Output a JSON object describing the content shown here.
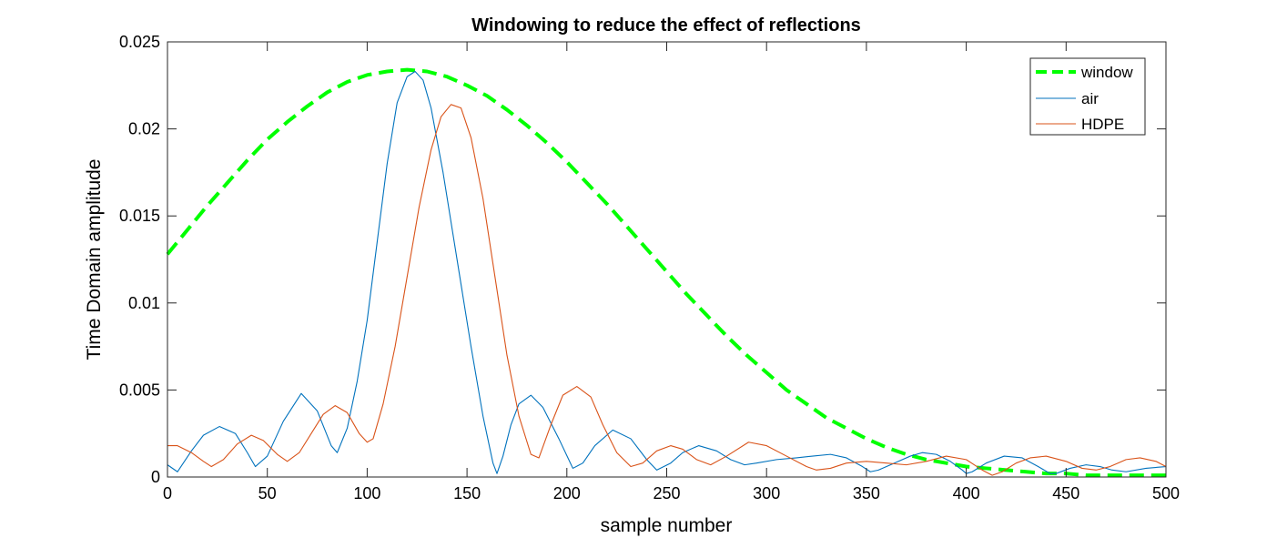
{
  "chart_data": {
    "type": "line",
    "title": "Windowing to reduce the effect of reflections",
    "xlabel": "sample number",
    "ylabel": "Time Domain amplitude",
    "xlim": [
      0,
      500
    ],
    "ylim": [
      0,
      0.025
    ],
    "xticks": [
      0,
      50,
      100,
      150,
      200,
      250,
      300,
      350,
      400,
      450,
      500
    ],
    "yticks": [
      0,
      0.005,
      0.01,
      0.015,
      0.02,
      0.025
    ],
    "xtick_labels": [
      "0",
      "50",
      "100",
      "150",
      "200",
      "250",
      "300",
      "350",
      "400",
      "450",
      "500"
    ],
    "ytick_labels": [
      "0",
      "0.005",
      "0.01",
      "0.015",
      "0.02",
      "0.025"
    ],
    "grid": false,
    "legend_position": "top-right",
    "series": [
      {
        "name": "window",
        "color": "#00ff00",
        "style": "dashed",
        "x": [
          0,
          10,
          20,
          30,
          40,
          50,
          60,
          70,
          80,
          90,
          100,
          110,
          120,
          130,
          140,
          150,
          160,
          170,
          180,
          190,
          200,
          210,
          220,
          230,
          240,
          250,
          260,
          270,
          280,
          290,
          300,
          310,
          320,
          330,
          340,
          350,
          360,
          370,
          380,
          390,
          400,
          410,
          420,
          430,
          440,
          450,
          460,
          470,
          480,
          490,
          500
        ],
        "y": [
          0.0128,
          0.0142,
          0.0156,
          0.0169,
          0.0182,
          0.0194,
          0.0204,
          0.0213,
          0.0221,
          0.0227,
          0.0231,
          0.0233,
          0.0234,
          0.0233,
          0.023,
          0.0225,
          0.0219,
          0.0211,
          0.0202,
          0.0192,
          0.0181,
          0.0169,
          0.0157,
          0.0144,
          0.0131,
          0.0118,
          0.0105,
          0.0093,
          0.0081,
          0.007,
          0.006,
          0.005,
          0.0042,
          0.0034,
          0.0028,
          0.0022,
          0.0017,
          0.0013,
          0.001,
          0.0008,
          0.0006,
          0.0005,
          0.0004,
          0.0003,
          0.0002,
          0.0002,
          0.0001,
          0.0001,
          0.0001,
          0.0001,
          0.0001
        ]
      },
      {
        "name": "air",
        "color": "#0072bd",
        "style": "solid",
        "x": [
          0,
          5,
          12,
          18,
          26,
          34,
          40,
          44,
          50,
          58,
          67,
          75,
          82,
          85,
          90,
          95,
          100,
          105,
          110,
          115,
          120,
          124,
          128,
          132,
          138,
          145,
          152,
          158,
          163,
          165,
          168,
          172,
          176,
          182,
          188,
          196,
          203,
          208,
          214,
          223,
          232,
          240,
          245,
          252,
          258,
          266,
          275,
          282,
          289,
          295,
          305,
          315,
          323,
          332,
          340,
          348,
          352,
          356,
          364,
          372,
          378,
          385,
          392,
          398,
          400,
          403,
          410,
          419,
          428,
          436,
          442,
          445,
          452,
          460,
          467,
          473,
          480,
          490,
          500
        ],
        "y": [
          0.0007,
          0.0003,
          0.0015,
          0.0024,
          0.0029,
          0.0025,
          0.0014,
          0.0006,
          0.0012,
          0.0032,
          0.0048,
          0.0038,
          0.0018,
          0.0014,
          0.0028,
          0.0055,
          0.009,
          0.0135,
          0.018,
          0.0215,
          0.023,
          0.0233,
          0.0228,
          0.0212,
          0.0175,
          0.0125,
          0.0075,
          0.0035,
          0.0008,
          0.0002,
          0.0012,
          0.003,
          0.0042,
          0.0047,
          0.004,
          0.0022,
          0.0005,
          0.0008,
          0.0018,
          0.0027,
          0.0022,
          0.001,
          0.0004,
          0.0008,
          0.0014,
          0.0018,
          0.0015,
          0.001,
          0.0007,
          0.0008,
          0.001,
          0.0011,
          0.0012,
          0.0013,
          0.0011,
          0.0006,
          0.0003,
          0.0004,
          0.0008,
          0.0012,
          0.0014,
          0.0013,
          0.0009,
          0.0004,
          0.0002,
          0.0003,
          0.0008,
          0.0012,
          0.0011,
          0.0006,
          0.0002,
          0.0002,
          0.0005,
          0.0007,
          0.0006,
          0.0004,
          0.0003,
          0.0005,
          0.0006
        ]
      },
      {
        "name": "HDPE",
        "color": "#d95319",
        "style": "solid",
        "x": [
          0,
          5,
          12,
          18,
          22,
          28,
          35,
          42,
          48,
          55,
          60,
          66,
          72,
          78,
          84,
          90,
          96,
          100,
          103,
          108,
          114,
          120,
          126,
          132,
          137,
          142,
          147,
          152,
          158,
          164,
          170,
          176,
          182,
          186,
          192,
          198,
          205,
          212,
          218,
          225,
          232,
          238,
          245,
          252,
          258,
          265,
          272,
          280,
          291,
          300,
          310,
          320,
          325,
          332,
          340,
          350,
          360,
          370,
          380,
          390,
          400,
          408,
          413,
          418,
          425,
          432,
          440,
          450,
          458,
          465,
          472,
          480,
          487,
          495,
          500
        ],
        "y": [
          0.0018,
          0.0018,
          0.0014,
          0.0009,
          0.0006,
          0.001,
          0.0019,
          0.0024,
          0.0021,
          0.0013,
          0.0009,
          0.0014,
          0.0025,
          0.0036,
          0.0041,
          0.0037,
          0.0025,
          0.002,
          0.0022,
          0.0042,
          0.0075,
          0.0115,
          0.0155,
          0.0188,
          0.0207,
          0.0214,
          0.0212,
          0.0195,
          0.016,
          0.0115,
          0.007,
          0.0035,
          0.0013,
          0.0011,
          0.003,
          0.0047,
          0.0052,
          0.0046,
          0.003,
          0.0014,
          0.0006,
          0.0008,
          0.0015,
          0.0018,
          0.0016,
          0.001,
          0.0007,
          0.0012,
          0.002,
          0.0018,
          0.0012,
          0.0006,
          0.0004,
          0.0005,
          0.0008,
          0.0009,
          0.0008,
          0.0007,
          0.0009,
          0.0012,
          0.001,
          0.0004,
          0.0001,
          0.0003,
          0.0008,
          0.0011,
          0.0012,
          0.0009,
          0.0005,
          0.0004,
          0.0006,
          0.001,
          0.0011,
          0.0009,
          0.0006
        ]
      }
    ]
  }
}
